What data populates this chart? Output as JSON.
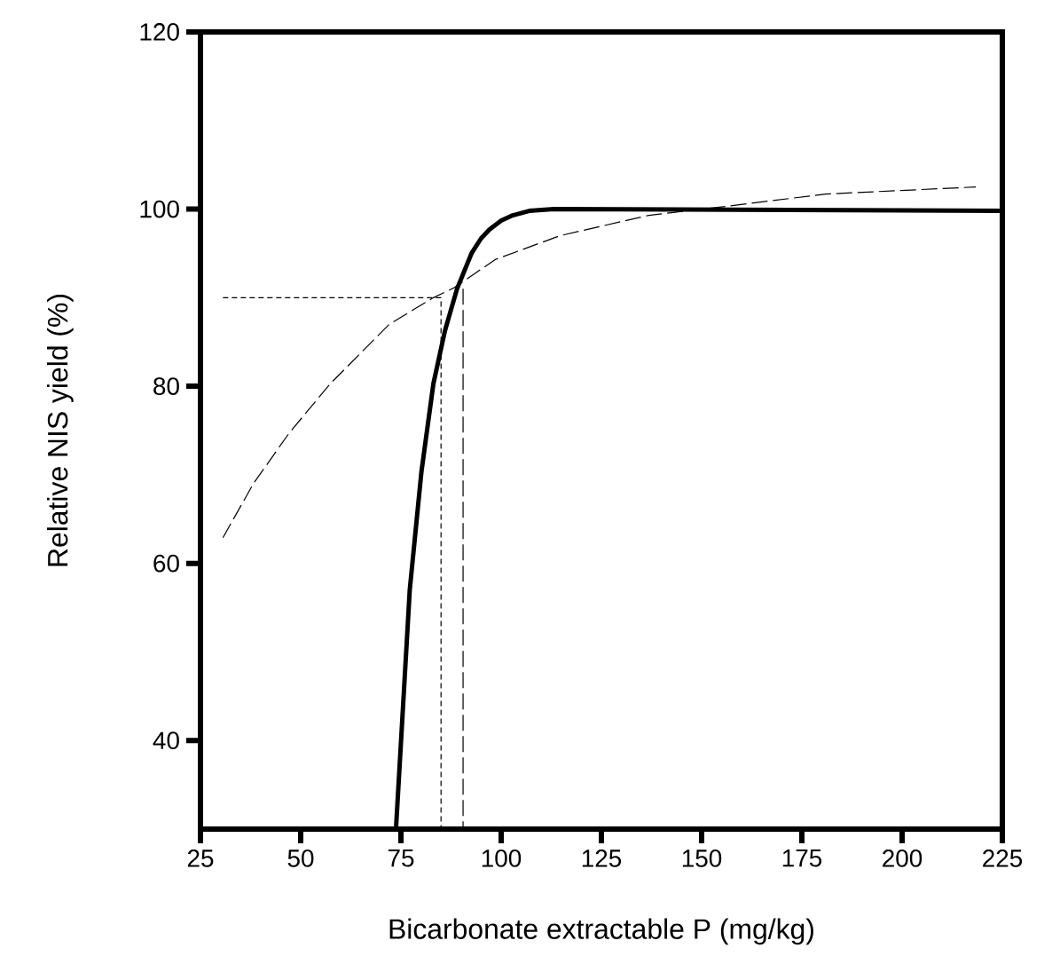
{
  "chart_data": {
    "type": "line",
    "xlabel": "Bicarbonate extractable P (mg/kg)",
    "ylabel": "Relative NIS yield (%)",
    "xlim": [
      25,
      225
    ],
    "ylim": [
      30,
      120
    ],
    "xticks": [
      25,
      50,
      75,
      100,
      125,
      150,
      175,
      200,
      225
    ],
    "yticks": [
      40,
      60,
      80,
      100,
      120
    ],
    "marker": "none",
    "grid": false,
    "series": [
      {
        "color": "#000000",
        "line_style": "solid",
        "x": [
          73.8,
          77.2,
          80.1,
          83.1,
          86.0,
          89.0,
          92.6,
          95,
          97.1,
          100,
          102.9,
          107,
          113.2,
          225
        ],
        "values": [
          30.3,
          57,
          70.3,
          80.3,
          86.3,
          91,
          95,
          96.7,
          97.7,
          98.7,
          99.3,
          99.8,
          100,
          99.8
        ]
      },
      {
        "color": "#000000",
        "line_style": "dashed",
        "x": [
          30.6,
          38.2,
          47.1,
          57.4,
          72.1,
          83.1,
          88.2,
          98.5,
          114.7,
          136.8,
          155.9,
          180.9,
          218.4
        ],
        "values": [
          62.9,
          69,
          74.7,
          80.3,
          87,
          90,
          91.1,
          94.3,
          97,
          99.3,
          100.3,
          101.7,
          102.5
        ]
      },
      {
        "color": "#000000",
        "line_style": "dotted",
        "x": [
          30.6,
          85,
          85
        ],
        "values": [
          90,
          90,
          30
        ]
      },
      {
        "color": "#000000",
        "line_style": "dashed",
        "x": [
          90.5,
          90.5
        ],
        "values": [
          91,
          30
        ]
      }
    ]
  }
}
